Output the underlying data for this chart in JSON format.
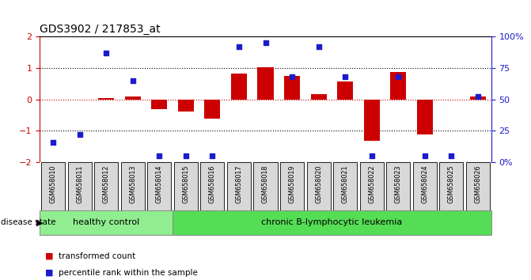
{
  "title": "GDS3902 / 217853_at",
  "samples": [
    "GSM658010",
    "GSM658011",
    "GSM658012",
    "GSM658013",
    "GSM658014",
    "GSM658015",
    "GSM658016",
    "GSM658017",
    "GSM658018",
    "GSM658019",
    "GSM658020",
    "GSM658021",
    "GSM658022",
    "GSM658023",
    "GSM658024",
    "GSM658025",
    "GSM658026"
  ],
  "bar_values": [
    0.0,
    -0.02,
    0.05,
    0.08,
    -0.3,
    -0.38,
    -0.6,
    0.82,
    1.02,
    0.75,
    0.18,
    0.58,
    -1.32,
    0.88,
    -1.12,
    -0.02,
    0.08
  ],
  "pct_values": [
    16,
    22,
    87,
    65,
    5,
    5,
    5,
    92,
    95,
    68,
    92,
    68,
    5,
    68,
    5,
    5,
    52
  ],
  "healthy_count": 5,
  "disease_count": 12,
  "ylim": [
    -2,
    2
  ],
  "y2lim": [
    0,
    100
  ],
  "bar_color": "#cc0000",
  "dot_color": "#1c1ccc",
  "healthy_color": "#90ee90",
  "disease_color": "#55dd55",
  "yticks_left": [
    -2,
    -1,
    0,
    1,
    2
  ],
  "yticks_right": [
    0,
    25,
    50,
    75,
    100
  ],
  "ytick_labels_right": [
    "0%",
    "25",
    "50",
    "75",
    "100%"
  ],
  "label_bg_color": "#d8d8d8"
}
